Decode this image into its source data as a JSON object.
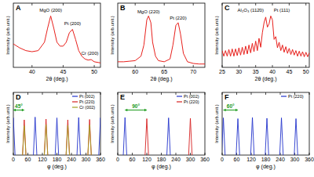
{
  "chart_data": [
    {
      "type": "line",
      "title": "A",
      "x_label": "2θ (deg.)",
      "y_label": "Intensity (arb.unit.)",
      "xlim": [
        37,
        51
      ],
      "xticks": [
        40,
        45,
        50
      ],
      "ylim": [
        0,
        1.15
      ],
      "tick_labels": "x",
      "series": [
        {
          "color": "#e8201c",
          "x": [
            37,
            38,
            39,
            40,
            41,
            42,
            42.5,
            43,
            43.5,
            44,
            44.5,
            45,
            45.5,
            46,
            46.5,
            47,
            47.5,
            48,
            48.5,
            49,
            49.5,
            50,
            51
          ],
          "values": [
            0.42,
            0.35,
            0.3,
            0.28,
            0.3,
            0.45,
            0.7,
            0.92,
            0.7,
            0.45,
            0.38,
            0.38,
            0.45,
            0.62,
            0.68,
            0.5,
            0.3,
            0.2,
            0.15,
            0.13,
            0.14,
            0.1,
            0.08
          ]
        }
      ],
      "annotations": [
        {
          "text": "MgO (200)",
          "x": 43,
          "y": 1.0
        },
        {
          "text": "Pt (200)",
          "x": 46.5,
          "y": 0.76
        },
        {
          "text": "Cr (200)",
          "x": 49.3,
          "y": 0.22
        }
      ]
    },
    {
      "type": "line",
      "title": "B",
      "x_label": "2θ (deg.)",
      "y_label": "Intensity (arb.unit.)",
      "xlim": [
        57,
        72
      ],
      "xticks": [
        60,
        65,
        70
      ],
      "ylim": [
        0,
        1.15
      ],
      "tick_labels": "x",
      "series": [
        {
          "color": "#e8201c",
          "x": [
            57,
            58,
            59,
            60,
            61,
            61.5,
            62,
            62.3,
            62.7,
            63,
            63.5,
            64,
            65,
            66,
            66.5,
            67,
            67.4,
            67.8,
            68.3,
            69,
            70,
            71,
            72
          ],
          "values": [
            0.1,
            0.1,
            0.11,
            0.12,
            0.2,
            0.4,
            0.85,
            0.92,
            0.8,
            0.45,
            0.2,
            0.12,
            0.1,
            0.15,
            0.4,
            0.75,
            0.8,
            0.6,
            0.25,
            0.1,
            0.07,
            0.06,
            0.06
          ]
        }
      ],
      "annotations": [
        {
          "text": "MgO (220)",
          "x": 62.3,
          "y": 0.97
        },
        {
          "text": "Pt (220)",
          "x": 67.4,
          "y": 0.85
        }
      ]
    },
    {
      "type": "line",
      "title": "C",
      "x_label": "2θ (deg.)",
      "y_label": "Intensity (arb.unit.)",
      "xlim": [
        25,
        51
      ],
      "xticks": [
        25,
        30,
        35,
        40,
        45,
        50
      ],
      "ylim": [
        0,
        1.15
      ],
      "tick_labels": "x",
      "series": [
        {
          "color": "#e8201c",
          "x": [
            25,
            25.5,
            26,
            26.5,
            27,
            27.5,
            28,
            28.5,
            29,
            29.5,
            30,
            30.5,
            31,
            31.5,
            32,
            32.5,
            33,
            33.5,
            34,
            34.5,
            35,
            35.5,
            36,
            36.5,
            37,
            37.5,
            38,
            38.5,
            39,
            39.5,
            40,
            40.5,
            41,
            41.5,
            42,
            42.5,
            43,
            43.5,
            44,
            44.5,
            45,
            45.5,
            46,
            46.5,
            47,
            47.5,
            48,
            48.5,
            49,
            49.5,
            50,
            50.5,
            51
          ],
          "values": [
            0.3,
            0.2,
            0.3,
            0.2,
            0.32,
            0.2,
            0.33,
            0.2,
            0.33,
            0.21,
            0.35,
            0.22,
            0.36,
            0.23,
            0.38,
            0.24,
            0.4,
            0.26,
            0.43,
            0.28,
            0.47,
            0.3,
            0.52,
            0.36,
            0.62,
            0.8,
            0.9,
            0.72,
            0.78,
            0.92,
            0.85,
            0.5,
            0.55,
            0.35,
            0.45,
            0.3,
            0.4,
            0.27,
            0.37,
            0.25,
            0.34,
            0.23,
            0.32,
            0.22,
            0.3,
            0.2,
            0.29,
            0.2,
            0.28,
            0.19,
            0.27,
            0.19,
            0.26
          ]
        }
      ],
      "annotations": [
        {
          "text": "Al₂O₃ (112̄0)",
          "x": 33.5,
          "y": 1.0
        },
        {
          "text": "Pt (111)",
          "x": 42.8,
          "y": 1.0
        }
      ]
    },
    {
      "type": "stem",
      "title": "D",
      "x_label": "φ (deg.)",
      "y_label": "Intensity (arb.unit.)",
      "xlim": [
        0,
        360
      ],
      "xticks": [
        0,
        60,
        120,
        180,
        240,
        300,
        360
      ],
      "ylim": [
        0,
        1.6
      ],
      "tick_labels": "x",
      "legend": "upper right",
      "series": [
        {
          "name": "Pt (002)",
          "color": "#2233cc",
          "x": [
            0,
            90,
            180,
            270,
            360
          ],
          "values": [
            0.95,
            0.97,
            0.95,
            0.96,
            0.95
          ]
        },
        {
          "name": "Pt (220)",
          "color": "#d62020",
          "x": [
            45,
            135,
            225,
            315
          ],
          "values": [
            0.9,
            0.92,
            0.9,
            0.91
          ]
        },
        {
          "name": "Cr (002)",
          "color": "#a0a020",
          "x": [
            45,
            135,
            225,
            315
          ],
          "values": [
            0.75,
            0.78,
            0.76,
            0.77
          ]
        }
      ],
      "annotations": [
        {
          "text": "45°",
          "x": [
            0,
            45
          ],
          "y": 1.15
        }
      ]
    },
    {
      "type": "stem",
      "title": "E",
      "x_label": "φ (deg.)",
      "y_label": "Intensity (arb.unit.)",
      "xlim": [
        0,
        360
      ],
      "xticks": [
        0,
        60,
        120,
        180,
        240,
        300,
        360
      ],
      "ylim": [
        0,
        1.6
      ],
      "tick_labels": "x",
      "legend": "upper right",
      "series": [
        {
          "name": "Pt (002)",
          "color": "#2233cc",
          "x": [
            30,
            210
          ],
          "values": [
            0.96,
            0.95
          ]
        },
        {
          "name": "Pt (220)",
          "color": "#d62020",
          "x": [
            120,
            300
          ],
          "values": [
            0.93,
            0.94
          ]
        }
      ],
      "annotations": [
        {
          "text": "90°",
          "x": [
            30,
            120
          ],
          "y": 1.15
        }
      ]
    },
    {
      "type": "stem",
      "title": "F",
      "x_label": "φ (deg.)",
      "y_label": "Intensity (arb.unit.)",
      "xlim": [
        0,
        360
      ],
      "xticks": [
        0,
        60,
        120,
        180,
        240,
        300,
        360
      ],
      "ylim": [
        0,
        1.6
      ],
      "tick_labels": "x",
      "legend": "upper right",
      "series": [
        {
          "name": "Pt (220)",
          "color": "#2233cc",
          "x": [
            5,
            65,
            125,
            185,
            245,
            305
          ],
          "values": [
            0.95,
            0.93,
            0.96,
            0.94,
            0.95,
            0.93
          ]
        }
      ],
      "annotations": [
        {
          "text": "60°",
          "x": [
            5,
            65
          ],
          "y": 1.15
        }
      ]
    }
  ]
}
